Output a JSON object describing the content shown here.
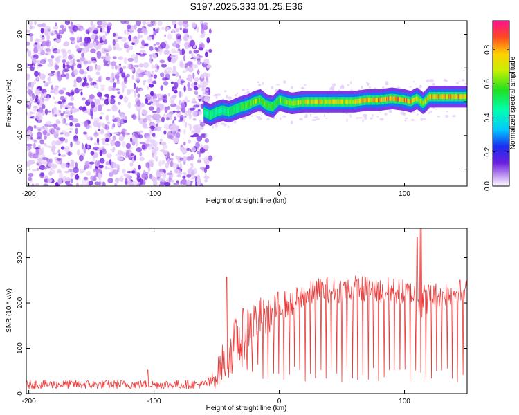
{
  "title": "S197.2025.333.01.25.E36",
  "colors": {
    "speckle_light": "#e2c8f8",
    "speckle_mid": "#b57ef0",
    "speckle_dark": "#7a2ee0",
    "snr_line": "#ee3a3a",
    "axis": "#000000"
  },
  "chart_data": [
    {
      "type": "heatmap",
      "name": "spectrogram",
      "xlabel": "Height of straight line (km)",
      "ylabel": "Frequency (Hz)",
      "xlim": [
        -202,
        150
      ],
      "ylim": [
        -25,
        24
      ],
      "xticks": [
        -200,
        -100,
        0,
        100
      ],
      "xtick_labels": [
        "-200",
        "-100",
        "0",
        "100"
      ],
      "yticks": [
        -20,
        -10,
        0,
        10,
        20
      ],
      "ytick_labels": [
        "-20",
        "-10",
        "0",
        "10",
        "20"
      ],
      "noise_region_x": [
        -202,
        -55
      ],
      "ridge": {
        "x": [
          -60,
          -55,
          -50,
          -45,
          -40,
          -35,
          -30,
          -25,
          -20,
          -15,
          -10,
          -5,
          0,
          5,
          10,
          20,
          30,
          40,
          50,
          60,
          70,
          80,
          90,
          100,
          105,
          110,
          115,
          120,
          130,
          140,
          150
        ],
        "freq": [
          -3,
          -4,
          -3,
          -2.5,
          -3,
          -2.2,
          -1.5,
          -1,
          0,
          0.5,
          -1,
          -1.5,
          0.5,
          0,
          -0.5,
          0,
          0,
          0,
          0,
          0,
          0.5,
          0.5,
          1,
          0.5,
          0,
          1,
          -0.5,
          1.5,
          1.5,
          1.5,
          1.5
        ],
        "amplitude": [
          0.45,
          0.5,
          0.45,
          0.45,
          0.5,
          0.5,
          0.55,
          0.6,
          0.65,
          0.6,
          0.55,
          0.55,
          0.6,
          0.6,
          0.6,
          0.7,
          0.75,
          0.7,
          0.7,
          0.7,
          0.75,
          0.8,
          0.75,
          0.8,
          0.75,
          0.7,
          0.65,
          0.75,
          0.75,
          0.75,
          0.75
        ]
      },
      "colorbar": {
        "label": "Normalized spectral amplitude",
        "range": [
          0,
          0.97
        ],
        "ticks": [
          0.0,
          0.2,
          0.4,
          0.6,
          0.8
        ],
        "tick_labels": [
          "0.0",
          "0.2",
          "0.4",
          "0.6",
          "0.8"
        ]
      }
    },
    {
      "type": "line",
      "name": "snr",
      "xlabel": "Height of straight line (km)",
      "ylabel": "SNR (10 * v/v)",
      "xlim": [
        -202,
        150
      ],
      "ylim": [
        0,
        365
      ],
      "xticks": [
        -200,
        -100,
        0,
        100
      ],
      "xtick_labels": [
        "-200",
        "-100",
        "0",
        "100"
      ],
      "yticks": [
        0,
        100,
        200,
        300
      ],
      "ytick_labels": [
        "0",
        "100",
        "200",
        "300"
      ],
      "envelope": {
        "x": [
          -202,
          -150,
          -100,
          -60,
          -55,
          -50,
          -45,
          -40,
          -35,
          -30,
          -25,
          -20,
          -15,
          -10,
          -5,
          0,
          10,
          20,
          30,
          40,
          50,
          60,
          70,
          80,
          90,
          100,
          110,
          113,
          116,
          120,
          130,
          140,
          150
        ],
        "mean": [
          20,
          20,
          20,
          20,
          25,
          40,
          70,
          90,
          110,
          125,
          145,
          160,
          170,
          165,
          180,
          195,
          200,
          215,
          225,
          230,
          228,
          232,
          230,
          225,
          228,
          222,
          218,
          200,
          205,
          215,
          220,
          225,
          222
        ],
        "spread": [
          10,
          10,
          10,
          10,
          15,
          30,
          45,
          55,
          60,
          60,
          55,
          50,
          45,
          40,
          35,
          35,
          30,
          30,
          30,
          30,
          30,
          30,
          30,
          30,
          30,
          30,
          30,
          40,
          40,
          30,
          30,
          30,
          30
        ]
      },
      "spikes": [
        {
          "x": -105,
          "y": 52
        },
        {
          "x": -42,
          "y": 258
        },
        {
          "x": 110,
          "y": 345
        },
        {
          "x": 113,
          "y": 365
        }
      ],
      "dips_start_x": -30,
      "dips_step_x": 4.2,
      "dips_min_y": 25
    }
  ]
}
